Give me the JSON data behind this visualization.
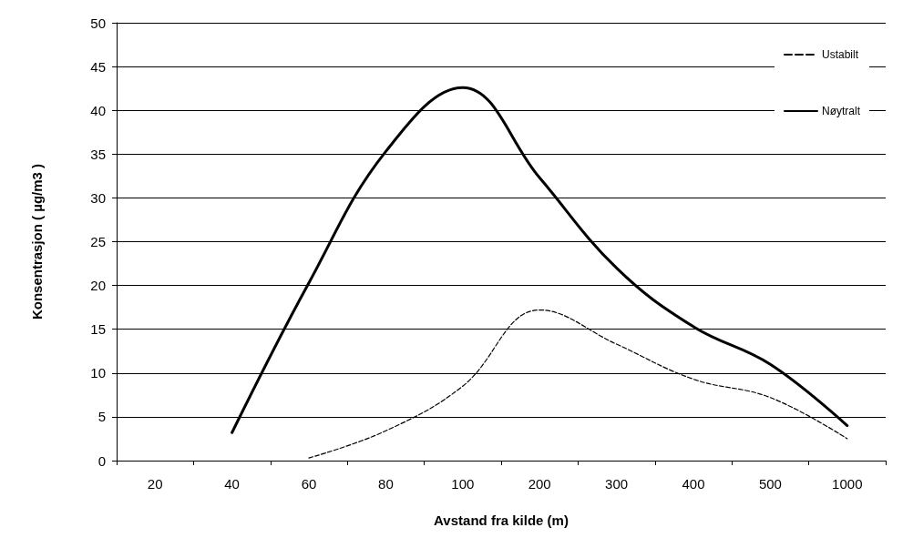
{
  "chart_data": {
    "type": "line",
    "xlabel": "Avstand fra kilde (m)",
    "ylabel": "Konsentrasjon ( µg/m3 )",
    "categories": [
      "20",
      "40",
      "60",
      "80",
      "100",
      "200",
      "300",
      "400",
      "500",
      "1000"
    ],
    "series": [
      {
        "name": "Ustabilt",
        "color": "#000000",
        "line_style": "dashed",
        "values": [
          null,
          null,
          0.3,
          3.4,
          8.5,
          17.2,
          13.3,
          9.3,
          7.2,
          2.5
        ]
      },
      {
        "name": "Nøytralt",
        "color": "#000000",
        "line_style": "solid",
        "values": [
          null,
          3.2,
          20.3,
          35.3,
          42.6,
          32.3,
          22,
          15.3,
          11,
          4
        ]
      }
    ],
    "ylim": [
      0,
      50
    ],
    "yticks": [
      0,
      5,
      10,
      15,
      20,
      25,
      30,
      35,
      40,
      45,
      50
    ],
    "grid": "y",
    "legend": "top right",
    "marker": "none"
  }
}
